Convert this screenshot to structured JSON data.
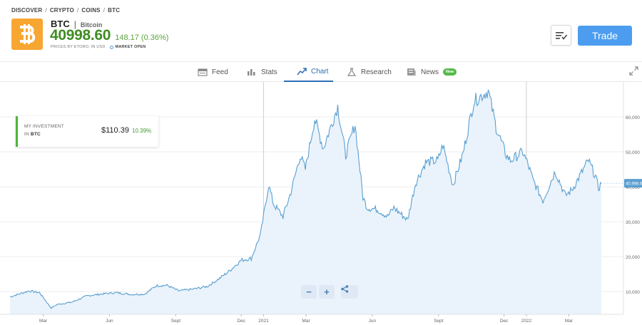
{
  "breadcrumb": [
    "DISCOVER",
    "CRYPTO",
    "COINS",
    "BTC"
  ],
  "breadcrumb_sep": "/",
  "coin": {
    "symbol": "BTC",
    "separator": "|",
    "name": "Bitcoin",
    "price": "40998.60",
    "change": "148.17 (0.36%)",
    "price_source": "PRICES BY ETORO, IN USD",
    "market_status": "MARKET OPEN",
    "logo_color": "#f7a632",
    "price_color": "#3f8c22"
  },
  "actions": {
    "trade_label": "Trade",
    "watchlist_icon": "watchlist-icon"
  },
  "tabs": [
    {
      "label": "Feed",
      "icon": "feed-icon",
      "active": false
    },
    {
      "label": "Stats",
      "icon": "stats-icon",
      "active": false
    },
    {
      "label": "Chart",
      "icon": "chart-icon",
      "active": true
    },
    {
      "label": "Research",
      "icon": "research-icon",
      "active": false
    },
    {
      "label": "News",
      "icon": "news-icon",
      "active": false,
      "badge": "New"
    }
  ],
  "investment": {
    "label_line1": "MY INVESTMENT",
    "label_prefix": "IN",
    "label_symbol": "BTC",
    "value": "$110.39",
    "percent": "10.39%"
  },
  "zoom": {
    "minus": "−",
    "plus": "+",
    "share_icon": "share-icon"
  },
  "chart_data": {
    "type": "area",
    "x": [
      "2020-01-15",
      "2020-02-10",
      "2020-02-25",
      "2020-03-12",
      "2020-03-20",
      "2020-04-10",
      "2020-05-01",
      "2020-05-20",
      "2020-06-10",
      "2020-07-01",
      "2020-07-20",
      "2020-08-05",
      "2020-08-20",
      "2020-09-05",
      "2020-09-25",
      "2020-10-15",
      "2020-11-01",
      "2020-11-15",
      "2020-12-01",
      "2020-12-15",
      "2020-12-28",
      "2021-01-08",
      "2021-01-15",
      "2021-01-28",
      "2021-02-08",
      "2021-02-21",
      "2021-02-28",
      "2021-03-13",
      "2021-03-25",
      "2021-04-14",
      "2021-04-25",
      "2021-05-08",
      "2021-05-19",
      "2021-05-25",
      "2021-06-08",
      "2021-06-22",
      "2021-07-01",
      "2021-07-20",
      "2021-07-31",
      "2021-08-14",
      "2021-08-31",
      "2021-09-07",
      "2021-09-21",
      "2021-10-05",
      "2021-10-20",
      "2021-11-09",
      "2021-11-20",
      "2021-12-04",
      "2021-12-10",
      "2021-12-27",
      "2022-01-03",
      "2022-01-10",
      "2022-01-24",
      "2022-02-10",
      "2022-02-24",
      "2022-03-05",
      "2022-03-28",
      "2022-04-07",
      "2022-04-11",
      "2022-04-15"
    ],
    "values": [
      8500,
      10200,
      9700,
      5300,
      6300,
      7000,
      8800,
      9300,
      9700,
      9200,
      9300,
      11700,
      11800,
      10200,
      10700,
      11500,
      13800,
      16000,
      19000,
      19500,
      26500,
      40500,
      35000,
      31500,
      38500,
      49000,
      45000,
      59500,
      51000,
      63000,
      49000,
      58000,
      37000,
      34000,
      33500,
      31500,
      34000,
      30500,
      41000,
      47000,
      47500,
      52000,
      40500,
      49500,
      64500,
      67500,
      57000,
      49000,
      47500,
      50000,
      46500,
      42000,
      36000,
      44500,
      37500,
      39000,
      47500,
      43000,
      39500,
      40998.6
    ],
    "ylim": [
      3500,
      70000
    ],
    "y_ticks": [
      "10,000",
      "20,000",
      "30,000",
      "40,000",
      "50,000",
      "60,000"
    ],
    "y_tick_values": [
      10000,
      20000,
      30000,
      40000,
      50000,
      60000
    ],
    "x_ticks": [
      "Mar",
      "Jun",
      "Sept",
      "Dec",
      "2021",
      "Mar",
      "Jun",
      "Sept",
      "Dec",
      "2022",
      "Mar"
    ],
    "x_tick_dates": [
      "2020-03-01",
      "2020-06-01",
      "2020-09-01",
      "2020-12-01",
      "2021-01-01",
      "2021-03-01",
      "2021-06-01",
      "2021-09-01",
      "2021-12-01",
      "2022-01-01",
      "2022-03-01"
    ],
    "year_markers": [
      "2021-01-01",
      "2022-01-01"
    ],
    "current_price_label": "40,998.60",
    "line_color": "#5a9fd1",
    "fill_color": "#eaf3fb",
    "grid": true
  }
}
